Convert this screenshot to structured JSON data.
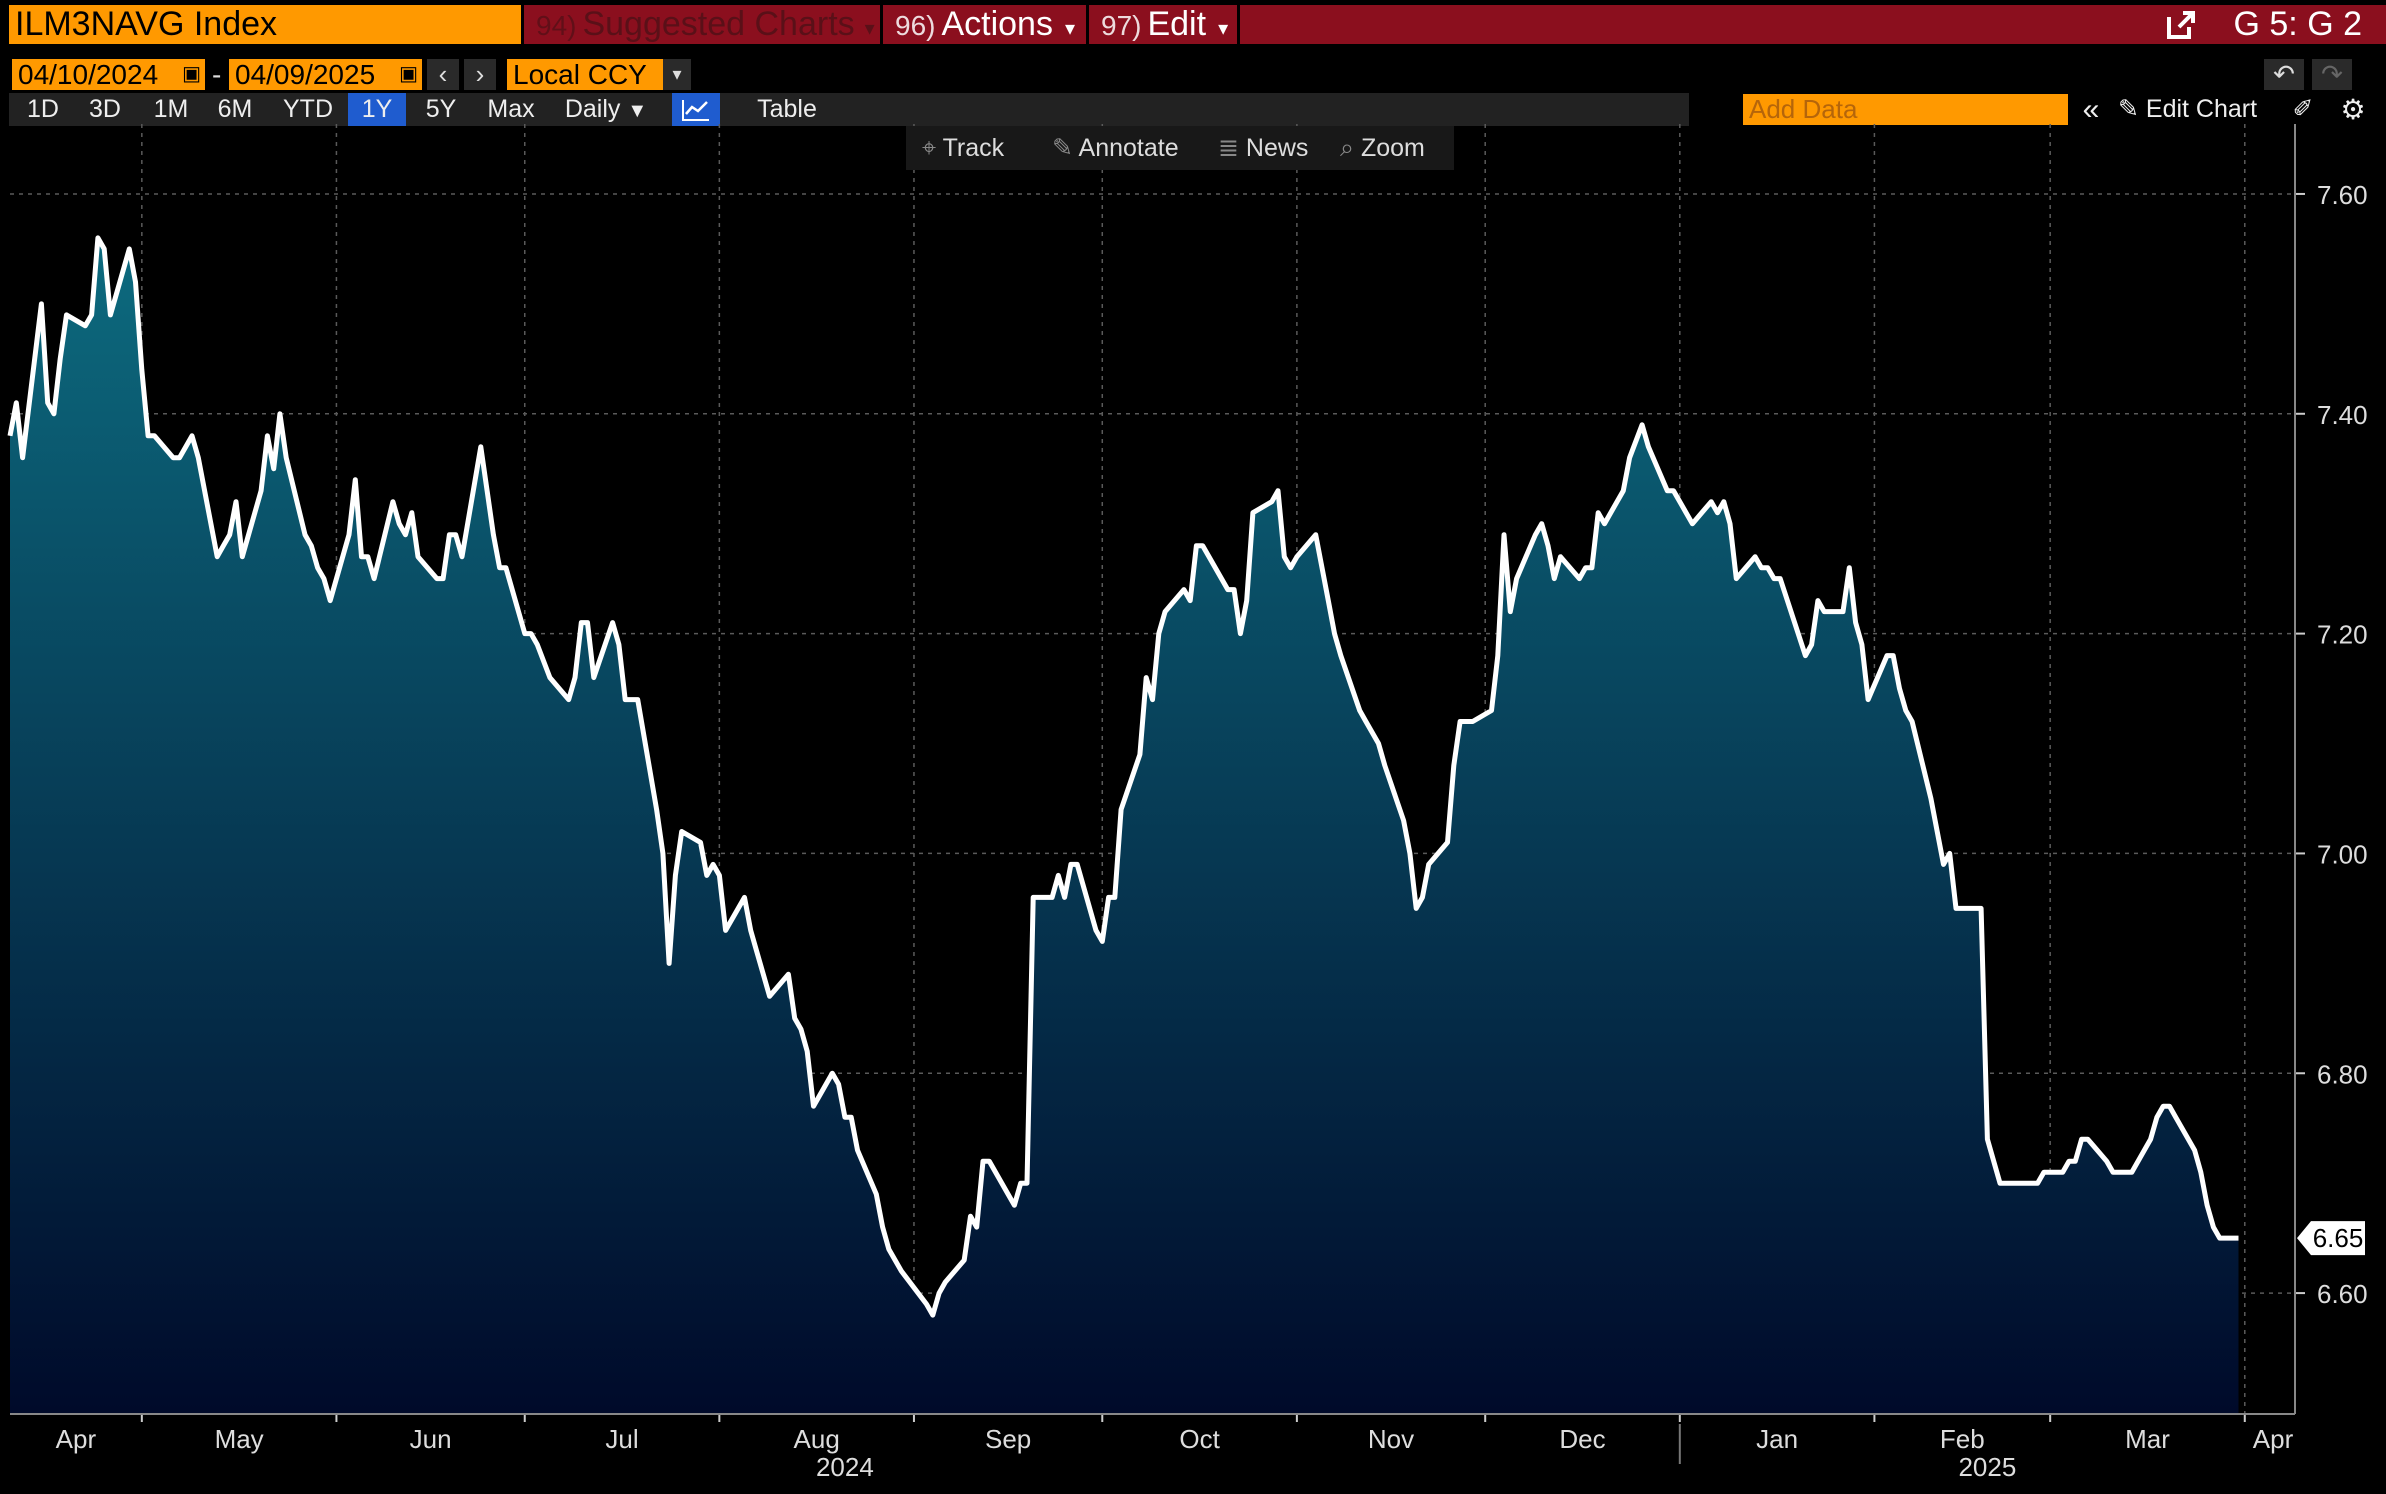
{
  "header": {
    "ticker": "ILM3NAVG Index",
    "suggested_num": "94)",
    "suggested_label": "Suggested Charts",
    "actions_num": "96)",
    "actions_label": "Actions",
    "edit_num": "97)",
    "edit_label": "Edit",
    "position": "G 5: G 2"
  },
  "controls": {
    "start_date": "04/10/2024",
    "end_date": "04/09/2025",
    "currency": "Local CCY",
    "periods": [
      "1D",
      "3D",
      "1M",
      "6M",
      "YTD",
      "1Y",
      "5Y",
      "Max"
    ],
    "selected_period": "1Y",
    "frequency": "Daily",
    "table_label": "Table",
    "add_data_placeholder": "Add Data",
    "edit_chart_label": "Edit Chart",
    "tools": [
      "Track",
      "Annotate",
      "News",
      "Zoom"
    ]
  },
  "colors": {
    "header_red": "#8b0f1e",
    "orange": "#ff9900",
    "selected_blue": "#1f5ccf",
    "area_top": "#0d6b7f",
    "area_bottom": "#000a2a",
    "line": "#ffffff"
  },
  "chart_data": {
    "type": "area",
    "ylim": [
      6.49,
      7.66
    ],
    "yticks": [
      "7.60",
      "7.40",
      "7.20",
      "7.00",
      "6.80",
      "6.60"
    ],
    "ytick_values": [
      7.6,
      7.4,
      7.2,
      7.0,
      6.8,
      6.6
    ],
    "last_value": "6.65",
    "x_start": "2024-04-10",
    "x_end": "2025-04-09",
    "month_labels": [
      "Apr",
      "May",
      "Jun",
      "Jul",
      "Aug",
      "Sep",
      "Oct",
      "Nov",
      "Dec",
      "Jan",
      "Feb",
      "Mar",
      "Apr"
    ],
    "year_labels": [
      "2024",
      "2025"
    ],
    "series": [
      {
        "points": [
          [
            "2024-04-10",
            7.38
          ],
          [
            "2024-04-11",
            7.41
          ],
          [
            "2024-04-12",
            7.36
          ],
          [
            "2024-04-15",
            7.5
          ],
          [
            "2024-04-16",
            7.41
          ],
          [
            "2024-04-17",
            7.4
          ],
          [
            "2024-04-18",
            7.45
          ],
          [
            "2024-04-19",
            7.49
          ],
          [
            "2024-04-22",
            7.48
          ],
          [
            "2024-04-23",
            7.49
          ],
          [
            "2024-04-24",
            7.56
          ],
          [
            "2024-04-25",
            7.55
          ],
          [
            "2024-04-26",
            7.49
          ],
          [
            "2024-04-29",
            7.55
          ],
          [
            "2024-04-30",
            7.52
          ],
          [
            "2024-05-01",
            7.44
          ],
          [
            "2024-05-02",
            7.38
          ],
          [
            "2024-05-03",
            7.38
          ],
          [
            "2024-05-06",
            7.36
          ],
          [
            "2024-05-07",
            7.36
          ],
          [
            "2024-05-08",
            7.37
          ],
          [
            "2024-05-09",
            7.38
          ],
          [
            "2024-05-10",
            7.36
          ],
          [
            "2024-05-13",
            7.27
          ],
          [
            "2024-05-14",
            7.28
          ],
          [
            "2024-05-15",
            7.29
          ],
          [
            "2024-05-16",
            7.32
          ],
          [
            "2024-05-17",
            7.27
          ],
          [
            "2024-05-20",
            7.33
          ],
          [
            "2024-05-21",
            7.38
          ],
          [
            "2024-05-22",
            7.35
          ],
          [
            "2024-05-23",
            7.4
          ],
          [
            "2024-05-24",
            7.36
          ],
          [
            "2024-05-27",
            7.29
          ],
          [
            "2024-05-28",
            7.28
          ],
          [
            "2024-05-29",
            7.26
          ],
          [
            "2024-05-30",
            7.25
          ],
          [
            "2024-05-31",
            7.23
          ],
          [
            "2024-06-03",
            7.29
          ],
          [
            "2024-06-04",
            7.34
          ],
          [
            "2024-06-05",
            7.27
          ],
          [
            "2024-06-06",
            7.27
          ],
          [
            "2024-06-07",
            7.25
          ],
          [
            "2024-06-10",
            7.32
          ],
          [
            "2024-06-11",
            7.3
          ],
          [
            "2024-06-12",
            7.29
          ],
          [
            "2024-06-13",
            7.31
          ],
          [
            "2024-06-14",
            7.27
          ],
          [
            "2024-06-17",
            7.25
          ],
          [
            "2024-06-18",
            7.25
          ],
          [
            "2024-06-19",
            7.29
          ],
          [
            "2024-06-20",
            7.29
          ],
          [
            "2024-06-21",
            7.27
          ],
          [
            "2024-06-24",
            7.37
          ],
          [
            "2024-06-25",
            7.33
          ],
          [
            "2024-06-26",
            7.29
          ],
          [
            "2024-06-27",
            7.26
          ],
          [
            "2024-06-28",
            7.26
          ],
          [
            "2024-07-01",
            7.2
          ],
          [
            "2024-07-02",
            7.2
          ],
          [
            "2024-07-03",
            7.19
          ],
          [
            "2024-07-05",
            7.16
          ],
          [
            "2024-07-08",
            7.14
          ],
          [
            "2024-07-09",
            7.16
          ],
          [
            "2024-07-10",
            7.21
          ],
          [
            "2024-07-11",
            7.21
          ],
          [
            "2024-07-12",
            7.16
          ],
          [
            "2024-07-15",
            7.21
          ],
          [
            "2024-07-16",
            7.19
          ],
          [
            "2024-07-17",
            7.14
          ],
          [
            "2024-07-18",
            7.14
          ],
          [
            "2024-07-19",
            7.14
          ],
          [
            "2024-07-22",
            7.04
          ],
          [
            "2024-07-23",
            7.0
          ],
          [
            "2024-07-24",
            6.9
          ],
          [
            "2024-07-25",
            6.98
          ],
          [
            "2024-07-26",
            7.02
          ],
          [
            "2024-07-29",
            7.01
          ],
          [
            "2024-07-30",
            6.98
          ],
          [
            "2024-07-31",
            6.99
          ],
          [
            "2024-08-01",
            6.98
          ],
          [
            "2024-08-02",
            6.93
          ],
          [
            "2024-08-05",
            6.96
          ],
          [
            "2024-08-06",
            6.93
          ],
          [
            "2024-08-07",
            6.91
          ],
          [
            "2024-08-08",
            6.89
          ],
          [
            "2024-08-09",
            6.87
          ],
          [
            "2024-08-12",
            6.89
          ],
          [
            "2024-08-13",
            6.85
          ],
          [
            "2024-08-14",
            6.84
          ],
          [
            "2024-08-15",
            6.82
          ],
          [
            "2024-08-16",
            6.77
          ],
          [
            "2024-08-19",
            6.8
          ],
          [
            "2024-08-20",
            6.79
          ],
          [
            "2024-08-21",
            6.76
          ],
          [
            "2024-08-22",
            6.76
          ],
          [
            "2024-08-23",
            6.73
          ],
          [
            "2024-08-26",
            6.69
          ],
          [
            "2024-08-27",
            6.66
          ],
          [
            "2024-08-28",
            6.64
          ],
          [
            "2024-08-29",
            6.63
          ],
          [
            "2024-08-30",
            6.62
          ],
          [
            "2024-09-03",
            6.59
          ],
          [
            "2024-09-04",
            6.58
          ],
          [
            "2024-09-05",
            6.6
          ],
          [
            "2024-09-06",
            6.61
          ],
          [
            "2024-09-09",
            6.63
          ],
          [
            "2024-09-10",
            6.67
          ],
          [
            "2024-09-11",
            6.66
          ],
          [
            "2024-09-12",
            6.72
          ],
          [
            "2024-09-13",
            6.72
          ],
          [
            "2024-09-16",
            6.69
          ],
          [
            "2024-09-17",
            6.68
          ],
          [
            "2024-09-18",
            6.7
          ],
          [
            "2024-09-19",
            6.7
          ],
          [
            "2024-09-20",
            6.96
          ],
          [
            "2024-09-23",
            6.96
          ],
          [
            "2024-09-24",
            6.98
          ],
          [
            "2024-09-25",
            6.96
          ],
          [
            "2024-09-26",
            6.99
          ],
          [
            "2024-09-27",
            6.99
          ],
          [
            "2024-09-30",
            6.93
          ],
          [
            "2024-10-01",
            6.92
          ],
          [
            "2024-10-02",
            6.96
          ],
          [
            "2024-10-03",
            6.96
          ],
          [
            "2024-10-04",
            7.04
          ],
          [
            "2024-10-07",
            7.09
          ],
          [
            "2024-10-08",
            7.16
          ],
          [
            "2024-10-09",
            7.14
          ],
          [
            "2024-10-10",
            7.2
          ],
          [
            "2024-10-11",
            7.22
          ],
          [
            "2024-10-14",
            7.24
          ],
          [
            "2024-10-15",
            7.23
          ],
          [
            "2024-10-16",
            7.28
          ],
          [
            "2024-10-17",
            7.28
          ],
          [
            "2024-10-18",
            7.27
          ],
          [
            "2024-10-21",
            7.24
          ],
          [
            "2024-10-22",
            7.24
          ],
          [
            "2024-10-23",
            7.2
          ],
          [
            "2024-10-24",
            7.23
          ],
          [
            "2024-10-25",
            7.31
          ],
          [
            "2024-10-28",
            7.32
          ],
          [
            "2024-10-29",
            7.33
          ],
          [
            "2024-10-30",
            7.27
          ],
          [
            "2024-10-31",
            7.26
          ],
          [
            "2024-11-01",
            7.27
          ],
          [
            "2024-11-04",
            7.29
          ],
          [
            "2024-11-05",
            7.26
          ],
          [
            "2024-11-06",
            7.23
          ],
          [
            "2024-11-07",
            7.2
          ],
          [
            "2024-11-08",
            7.18
          ],
          [
            "2024-11-11",
            7.13
          ],
          [
            "2024-11-12",
            7.12
          ],
          [
            "2024-11-13",
            7.11
          ],
          [
            "2024-11-14",
            7.1
          ],
          [
            "2024-11-15",
            7.08
          ],
          [
            "2024-11-18",
            7.03
          ],
          [
            "2024-11-19",
            7.0
          ],
          [
            "2024-11-20",
            6.95
          ],
          [
            "2024-11-21",
            6.96
          ],
          [
            "2024-11-22",
            6.99
          ],
          [
            "2024-11-25",
            7.01
          ],
          [
            "2024-11-26",
            7.08
          ],
          [
            "2024-11-27",
            7.12
          ],
          [
            "2024-11-29",
            7.12
          ],
          [
            "2024-12-02",
            7.13
          ],
          [
            "2024-12-03",
            7.18
          ],
          [
            "2024-12-04",
            7.29
          ],
          [
            "2024-12-05",
            7.22
          ],
          [
            "2024-12-06",
            7.25
          ],
          [
            "2024-12-09",
            7.29
          ],
          [
            "2024-12-10",
            7.3
          ],
          [
            "2024-12-11",
            7.28
          ],
          [
            "2024-12-12",
            7.25
          ],
          [
            "2024-12-13",
            7.27
          ],
          [
            "2024-12-16",
            7.25
          ],
          [
            "2024-12-17",
            7.26
          ],
          [
            "2024-12-18",
            7.26
          ],
          [
            "2024-12-19",
            7.31
          ],
          [
            "2024-12-20",
            7.3
          ],
          [
            "2024-12-23",
            7.33
          ],
          [
            "2024-12-24",
            7.36
          ],
          [
            "2024-12-26",
            7.39
          ],
          [
            "2024-12-27",
            7.37
          ],
          [
            "2024-12-30",
            7.33
          ],
          [
            "2024-12-31",
            7.33
          ],
          [
            "2025-01-02",
            7.31
          ],
          [
            "2025-01-03",
            7.3
          ],
          [
            "2025-01-06",
            7.32
          ],
          [
            "2025-01-07",
            7.31
          ],
          [
            "2025-01-08",
            7.32
          ],
          [
            "2025-01-09",
            7.3
          ],
          [
            "2025-01-10",
            7.25
          ],
          [
            "2025-01-13",
            7.27
          ],
          [
            "2025-01-14",
            7.26
          ],
          [
            "2025-01-15",
            7.26
          ],
          [
            "2025-01-16",
            7.25
          ],
          [
            "2025-01-17",
            7.25
          ],
          [
            "2025-01-21",
            7.18
          ],
          [
            "2025-01-22",
            7.19
          ],
          [
            "2025-01-23",
            7.23
          ],
          [
            "2025-01-24",
            7.22
          ],
          [
            "2025-01-27",
            7.22
          ],
          [
            "2025-01-28",
            7.26
          ],
          [
            "2025-01-29",
            7.21
          ],
          [
            "2025-01-30",
            7.19
          ],
          [
            "2025-01-31",
            7.14
          ],
          [
            "2025-02-03",
            7.18
          ],
          [
            "2025-02-04",
            7.18
          ],
          [
            "2025-02-05",
            7.15
          ],
          [
            "2025-02-06",
            7.13
          ],
          [
            "2025-02-07",
            7.12
          ],
          [
            "2025-02-10",
            7.05
          ],
          [
            "2025-02-11",
            7.02
          ],
          [
            "2025-02-12",
            6.99
          ],
          [
            "2025-02-13",
            7.0
          ],
          [
            "2025-02-14",
            6.95
          ],
          [
            "2025-02-18",
            6.95
          ],
          [
            "2025-02-19",
            6.74
          ],
          [
            "2025-02-20",
            6.72
          ],
          [
            "2025-02-21",
            6.7
          ],
          [
            "2025-02-24",
            6.7
          ],
          [
            "2025-02-25",
            6.7
          ],
          [
            "2025-02-26",
            6.7
          ],
          [
            "2025-02-27",
            6.7
          ],
          [
            "2025-02-28",
            6.71
          ],
          [
            "2025-03-03",
            6.71
          ],
          [
            "2025-03-04",
            6.72
          ],
          [
            "2025-03-05",
            6.72
          ],
          [
            "2025-03-06",
            6.74
          ],
          [
            "2025-03-07",
            6.74
          ],
          [
            "2025-03-10",
            6.72
          ],
          [
            "2025-03-11",
            6.71
          ],
          [
            "2025-03-12",
            6.71
          ],
          [
            "2025-03-13",
            6.71
          ],
          [
            "2025-03-14",
            6.71
          ],
          [
            "2025-03-17",
            6.74
          ],
          [
            "2025-03-18",
            6.76
          ],
          [
            "2025-03-19",
            6.77
          ],
          [
            "2025-03-20",
            6.77
          ],
          [
            "2025-03-21",
            6.76
          ],
          [
            "2025-03-24",
            6.73
          ],
          [
            "2025-03-25",
            6.71
          ],
          [
            "2025-03-26",
            6.68
          ],
          [
            "2025-03-27",
            6.66
          ],
          [
            "2025-03-28",
            6.65
          ],
          [
            "2025-03-31",
            6.65
          ]
        ]
      }
    ]
  }
}
